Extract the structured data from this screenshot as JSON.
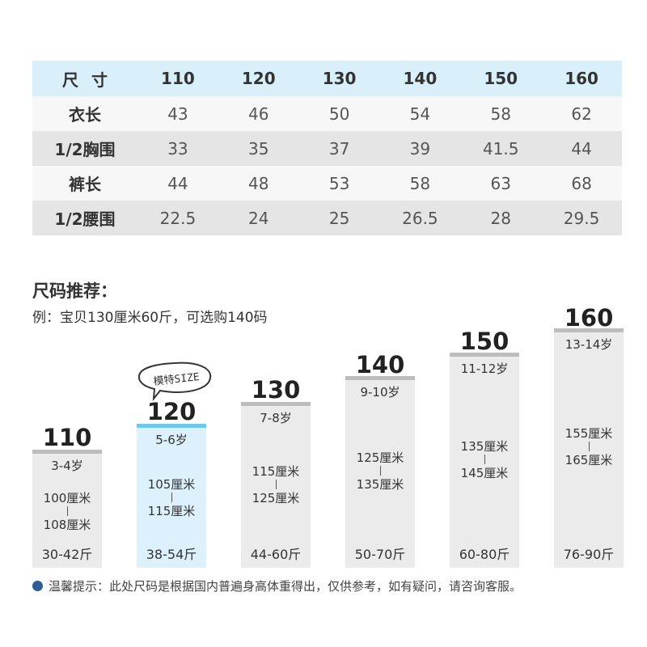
{
  "table": {
    "header": [
      "尺寸",
      "110",
      "120",
      "130",
      "140",
      "150",
      "160"
    ],
    "rows": [
      {
        "label": "衣长",
        "values": [
          "43",
          "46",
          "50",
          "54",
          "58",
          "62"
        ]
      },
      {
        "label": "1/2胸围",
        "values": [
          "33",
          "35",
          "37",
          "39",
          "41.5",
          "44"
        ]
      },
      {
        "label": "裤长",
        "values": [
          "44",
          "48",
          "53",
          "58",
          "63",
          "68"
        ]
      },
      {
        "label": "1/2腰围",
        "values": [
          "22.5",
          "24",
          "25",
          "26.5",
          "28",
          "29.5"
        ]
      }
    ]
  },
  "recommendation": {
    "title": "尺码推荐：",
    "example": "例：宝贝130厘米60斤，可选购140码"
  },
  "badge": {
    "text": "模特SIZE"
  },
  "bars": [
    {
      "size": "110",
      "age": "3-4岁",
      "height_from": "100厘米",
      "height_to": "108厘米",
      "weight": "30-42斤",
      "highlight": false
    },
    {
      "size": "120",
      "age": "5-6岁",
      "height_from": "105厘米",
      "height_to": "115厘米",
      "weight": "38-54斤",
      "highlight": true
    },
    {
      "size": "130",
      "age": "7-8岁",
      "height_from": "115厘米",
      "height_to": "125厘米",
      "weight": "44-60斤",
      "highlight": false
    },
    {
      "size": "140",
      "age": "9-10岁",
      "height_from": "125厘米",
      "height_to": "135厘米",
      "weight": "50-70斤",
      "highlight": false
    },
    {
      "size": "150",
      "age": "11-12岁",
      "height_from": "135厘米",
      "height_to": "145厘米",
      "weight": "60-80斤",
      "highlight": false
    },
    {
      "size": "160",
      "age": "13-14岁",
      "height_from": "155厘米",
      "height_to": "165厘米",
      "weight": "76-90斤",
      "highlight": false
    }
  ],
  "tip": "温馨提示：此处尺码是根据国内普遍身高体重得出，仅供参考，如有疑问，请咨询客服。"
}
